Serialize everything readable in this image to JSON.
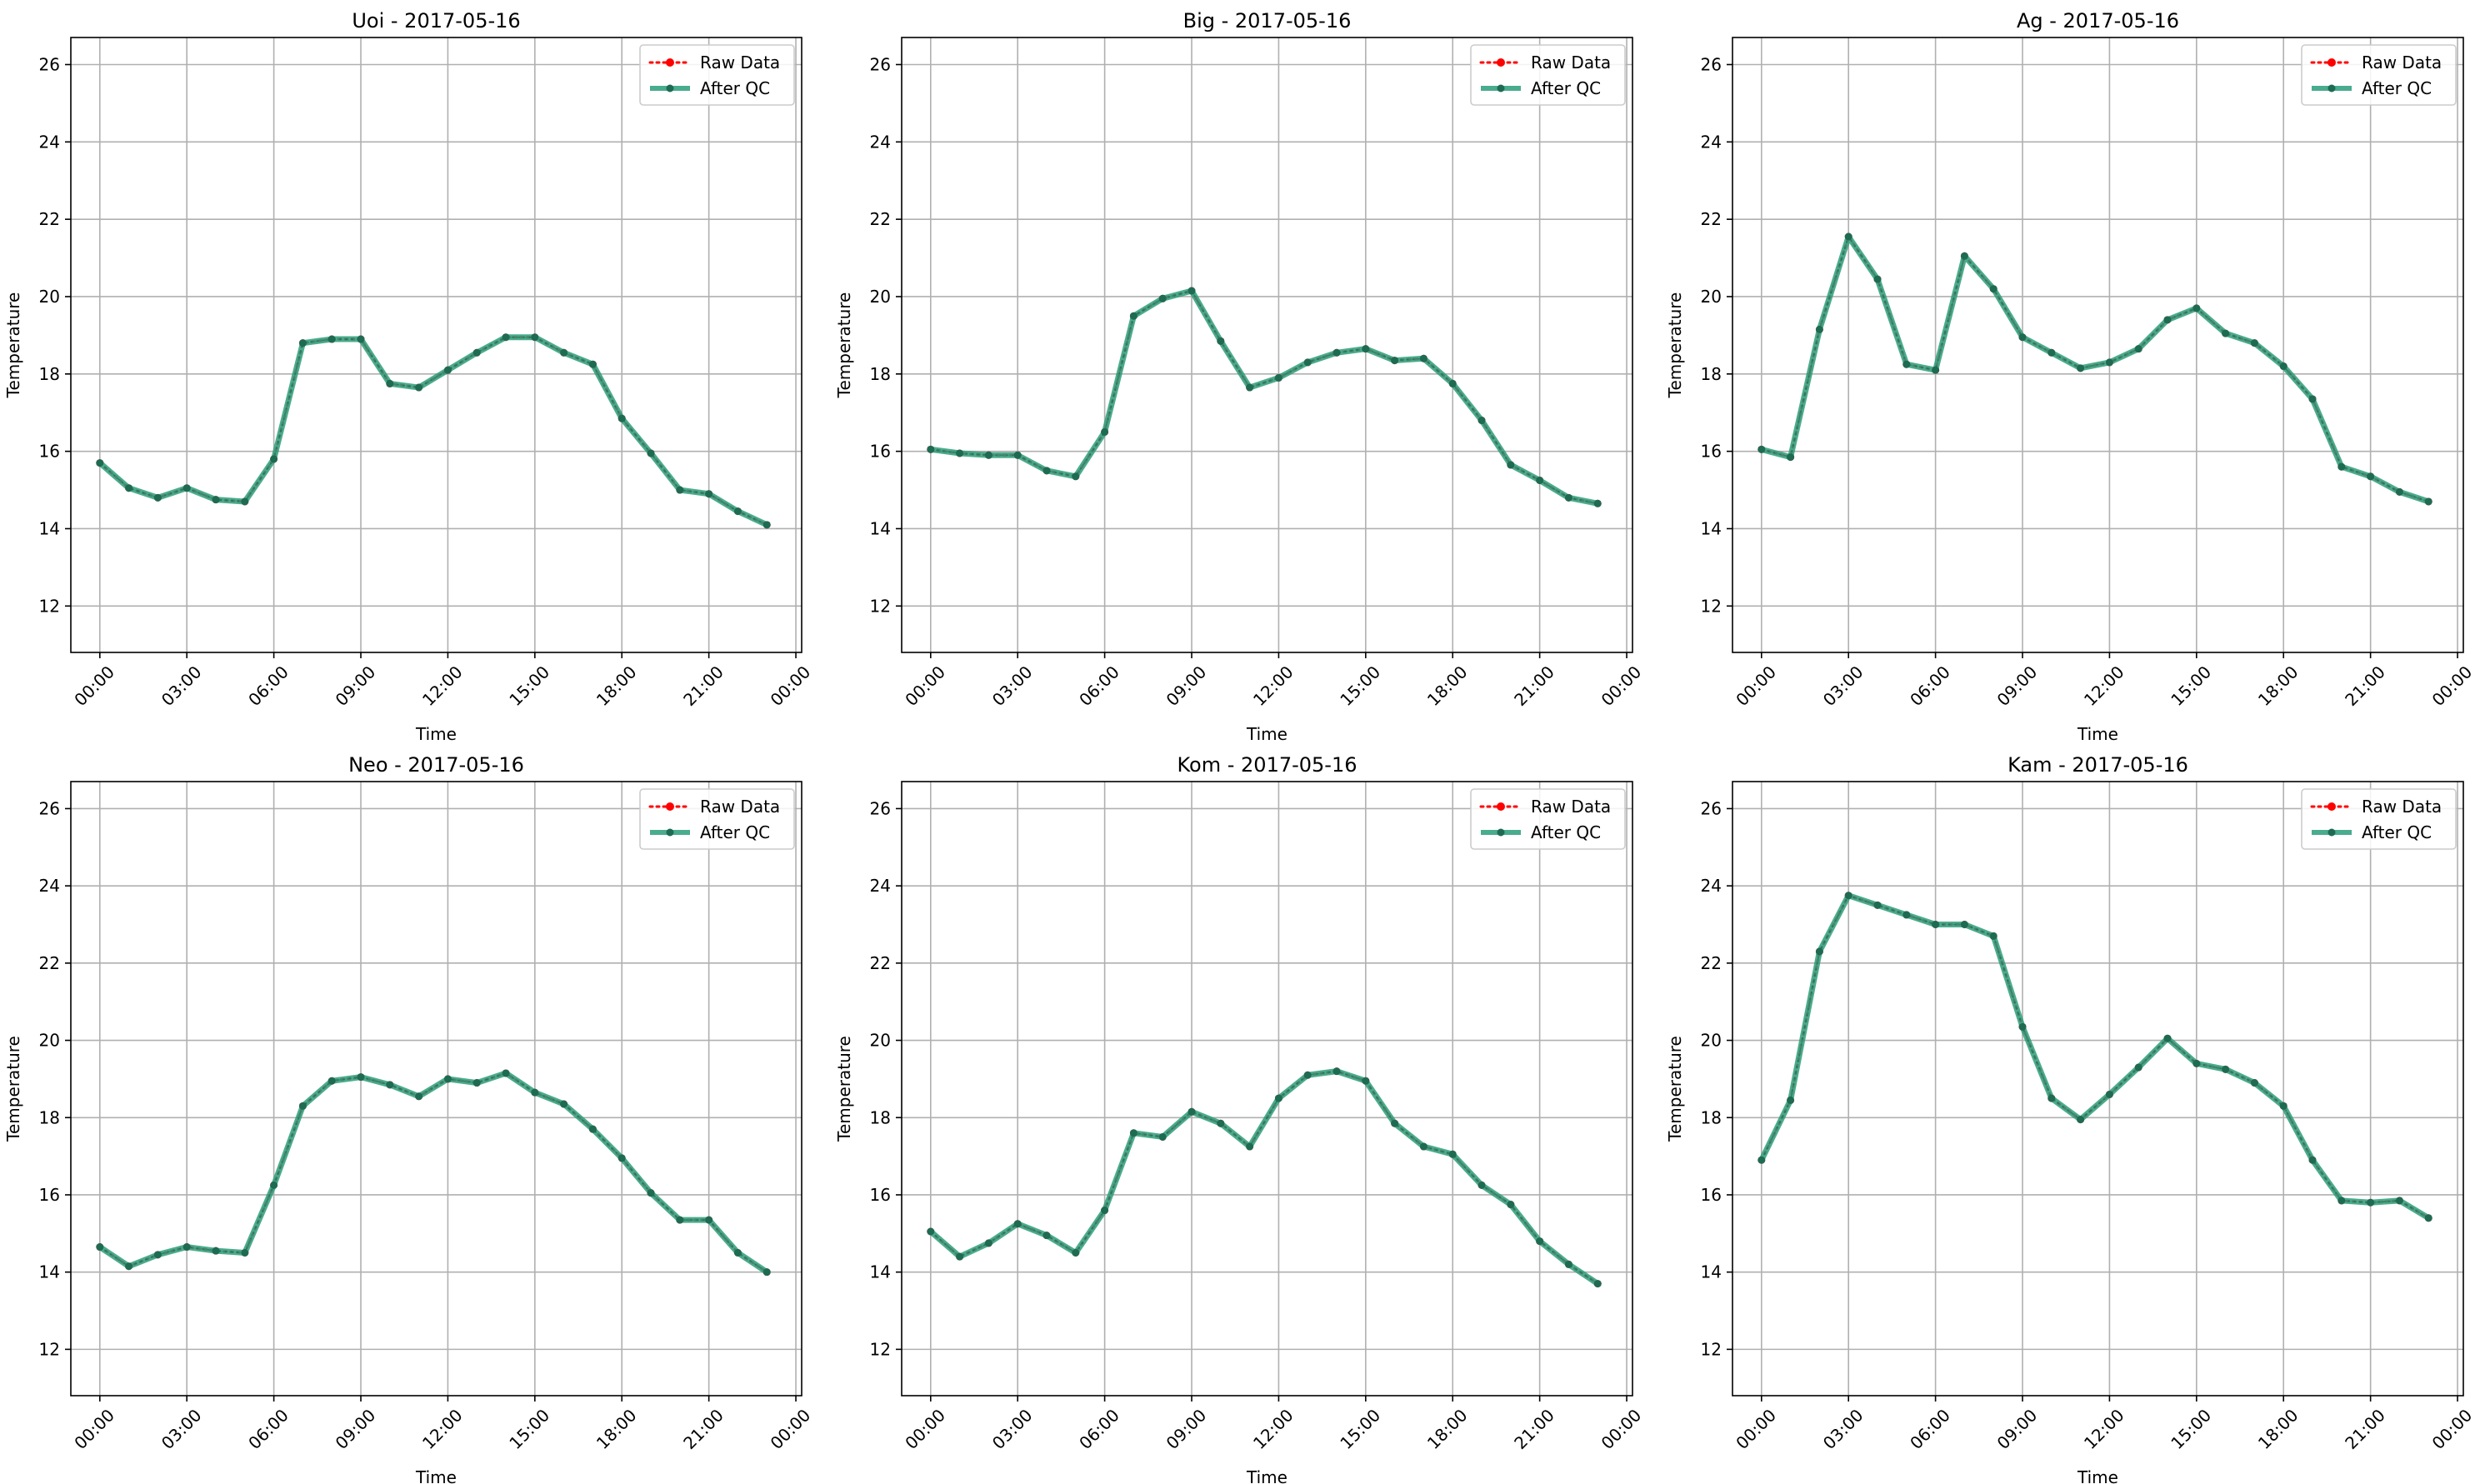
{
  "figure": {
    "background": "#ffffff",
    "colors": {
      "raw": "#ff0000",
      "after_qc": "#2a9d7a",
      "marker": "#1e6b53",
      "grid": "#b0b0b0"
    }
  },
  "chart_data": [
    {
      "type": "line",
      "title": "Uoi - 2017-05-16",
      "xlabel": "Time",
      "ylabel": "Temperature",
      "x_ticks": [
        "00:00",
        "03:00",
        "06:00",
        "09:00",
        "12:00",
        "15:00",
        "18:00",
        "21:00",
        "00:00"
      ],
      "y_ticks": [
        "12",
        "14",
        "16",
        "18",
        "20",
        "22",
        "24",
        "26"
      ],
      "xlim": [
        "2017-05-15 23:00",
        "2017-05-17 00:12"
      ],
      "ylim": [
        10.8,
        26.7
      ],
      "grid": true,
      "legend": "top-right",
      "x": [
        "00:00",
        "01:00",
        "02:00",
        "03:00",
        "04:00",
        "05:00",
        "06:00",
        "07:00",
        "08:00",
        "09:00",
        "10:00",
        "11:00",
        "12:00",
        "13:00",
        "14:00",
        "15:00",
        "16:00",
        "17:00",
        "18:00",
        "19:00",
        "20:00",
        "21:00",
        "22:00",
        "23:00"
      ],
      "series": [
        {
          "name": "Raw Data",
          "values": [
            15.7,
            15.05,
            14.8,
            15.05,
            14.75,
            14.7,
            15.8,
            18.8,
            18.9,
            18.9,
            17.75,
            17.65,
            18.1,
            18.55,
            18.95,
            18.95,
            18.55,
            18.25,
            16.85,
            15.95,
            15.0,
            14.9,
            14.45,
            14.1
          ]
        },
        {
          "name": "After QC",
          "values": [
            15.7,
            15.05,
            14.8,
            15.05,
            14.75,
            14.7,
            15.8,
            18.8,
            18.9,
            18.9,
            17.75,
            17.65,
            18.1,
            18.55,
            18.95,
            18.95,
            18.55,
            18.25,
            16.85,
            15.95,
            15.0,
            14.9,
            14.45,
            14.1
          ]
        }
      ]
    },
    {
      "type": "line",
      "title": "Big - 2017-05-16",
      "xlabel": "Time",
      "ylabel": "Temperature",
      "x_ticks": [
        "00:00",
        "03:00",
        "06:00",
        "09:00",
        "12:00",
        "15:00",
        "18:00",
        "21:00",
        "00:00"
      ],
      "y_ticks": [
        "12",
        "14",
        "16",
        "18",
        "20",
        "22",
        "24",
        "26"
      ],
      "xlim": [
        "2017-05-15 23:00",
        "2017-05-17 00:12"
      ],
      "ylim": [
        10.8,
        26.7
      ],
      "grid": true,
      "legend": "top-right",
      "x": [
        "00:00",
        "01:00",
        "02:00",
        "03:00",
        "04:00",
        "05:00",
        "06:00",
        "07:00",
        "08:00",
        "09:00",
        "10:00",
        "11:00",
        "12:00",
        "13:00",
        "14:00",
        "15:00",
        "16:00",
        "17:00",
        "18:00",
        "19:00",
        "20:00",
        "21:00",
        "22:00",
        "23:00"
      ],
      "series": [
        {
          "name": "Raw Data",
          "values": [
            16.05,
            15.95,
            15.9,
            15.9,
            15.5,
            15.35,
            16.5,
            19.5,
            19.95,
            20.15,
            18.85,
            17.65,
            17.9,
            18.3,
            18.55,
            18.65,
            18.35,
            18.4,
            17.75,
            16.8,
            15.65,
            15.25,
            14.8,
            14.65
          ]
        },
        {
          "name": "After QC",
          "values": [
            16.05,
            15.95,
            15.9,
            15.9,
            15.5,
            15.35,
            16.5,
            19.5,
            19.95,
            20.15,
            18.85,
            17.65,
            17.9,
            18.3,
            18.55,
            18.65,
            18.35,
            18.4,
            17.75,
            16.8,
            15.65,
            15.25,
            14.8,
            14.65
          ]
        }
      ]
    },
    {
      "type": "line",
      "title": "Ag - 2017-05-16",
      "xlabel": "Time",
      "ylabel": "Temperature",
      "x_ticks": [
        "00:00",
        "03:00",
        "06:00",
        "09:00",
        "12:00",
        "15:00",
        "18:00",
        "21:00",
        "00:00"
      ],
      "y_ticks": [
        "12",
        "14",
        "16",
        "18",
        "20",
        "22",
        "24",
        "26"
      ],
      "xlim": [
        "2017-05-15 23:00",
        "2017-05-17 00:12"
      ],
      "ylim": [
        10.8,
        26.7
      ],
      "grid": true,
      "legend": "top-right",
      "x": [
        "00:00",
        "01:00",
        "02:00",
        "03:00",
        "04:00",
        "05:00",
        "06:00",
        "07:00",
        "08:00",
        "09:00",
        "10:00",
        "11:00",
        "12:00",
        "13:00",
        "14:00",
        "15:00",
        "16:00",
        "17:00",
        "18:00",
        "19:00",
        "20:00",
        "21:00",
        "22:00",
        "23:00"
      ],
      "series": [
        {
          "name": "Raw Data",
          "values": [
            16.05,
            15.85,
            19.15,
            21.55,
            20.45,
            18.25,
            18.1,
            21.05,
            20.2,
            18.95,
            18.55,
            18.15,
            18.3,
            18.65,
            19.4,
            19.7,
            19.05,
            18.8,
            18.2,
            17.35,
            15.6,
            15.35,
            14.95,
            14.7
          ]
        },
        {
          "name": "After QC",
          "values": [
            16.05,
            15.85,
            19.15,
            21.55,
            20.45,
            18.25,
            18.1,
            21.05,
            20.2,
            18.95,
            18.55,
            18.15,
            18.3,
            18.65,
            19.4,
            19.7,
            19.05,
            18.8,
            18.2,
            17.35,
            15.6,
            15.35,
            14.95,
            14.7
          ]
        }
      ]
    },
    {
      "type": "line",
      "title": "Neo - 2017-05-16",
      "xlabel": "Time",
      "ylabel": "Temperature",
      "x_ticks": [
        "00:00",
        "03:00",
        "06:00",
        "09:00",
        "12:00",
        "15:00",
        "18:00",
        "21:00",
        "00:00"
      ],
      "y_ticks": [
        "12",
        "14",
        "16",
        "18",
        "20",
        "22",
        "24",
        "26"
      ],
      "xlim": [
        "2017-05-15 23:00",
        "2017-05-17 00:12"
      ],
      "ylim": [
        10.8,
        26.7
      ],
      "grid": true,
      "legend": "top-right",
      "x": [
        "00:00",
        "01:00",
        "02:00",
        "03:00",
        "04:00",
        "05:00",
        "06:00",
        "07:00",
        "08:00",
        "09:00",
        "10:00",
        "11:00",
        "12:00",
        "13:00",
        "14:00",
        "15:00",
        "16:00",
        "17:00",
        "18:00",
        "19:00",
        "20:00",
        "21:00",
        "22:00",
        "23:00"
      ],
      "series": [
        {
          "name": "Raw Data",
          "values": [
            14.65,
            14.15,
            14.45,
            14.65,
            14.55,
            14.5,
            16.25,
            18.3,
            18.95,
            19.05,
            18.85,
            18.55,
            19.0,
            18.9,
            19.15,
            18.65,
            18.35,
            17.7,
            16.95,
            16.05,
            15.35,
            15.35,
            14.5,
            14.0
          ]
        },
        {
          "name": "After QC",
          "values": [
            14.65,
            14.15,
            14.45,
            14.65,
            14.55,
            14.5,
            16.25,
            18.3,
            18.95,
            19.05,
            18.85,
            18.55,
            19.0,
            18.9,
            19.15,
            18.65,
            18.35,
            17.7,
            16.95,
            16.05,
            15.35,
            15.35,
            14.5,
            14.0
          ]
        }
      ]
    },
    {
      "type": "line",
      "title": "Kom - 2017-05-16",
      "xlabel": "Time",
      "ylabel": "Temperature",
      "x_ticks": [
        "00:00",
        "03:00",
        "06:00",
        "09:00",
        "12:00",
        "15:00",
        "18:00",
        "21:00",
        "00:00"
      ],
      "y_ticks": [
        "12",
        "14",
        "16",
        "18",
        "20",
        "22",
        "24",
        "26"
      ],
      "xlim": [
        "2017-05-15 23:00",
        "2017-05-17 00:12"
      ],
      "ylim": [
        10.8,
        26.7
      ],
      "grid": true,
      "legend": "top-right",
      "x": [
        "00:00",
        "01:00",
        "02:00",
        "03:00",
        "04:00",
        "05:00",
        "06:00",
        "07:00",
        "08:00",
        "09:00",
        "10:00",
        "11:00",
        "12:00",
        "13:00",
        "14:00",
        "15:00",
        "16:00",
        "17:00",
        "18:00",
        "19:00",
        "20:00",
        "21:00",
        "22:00",
        "23:00"
      ],
      "series": [
        {
          "name": "Raw Data",
          "values": [
            15.05,
            14.4,
            14.75,
            15.25,
            14.95,
            14.5,
            15.6,
            17.6,
            17.5,
            18.15,
            17.85,
            17.25,
            18.5,
            19.1,
            19.2,
            18.95,
            17.85,
            17.25,
            17.05,
            16.25,
            15.75,
            14.8,
            14.2,
            13.7
          ]
        },
        {
          "name": "After QC",
          "values": [
            15.05,
            14.4,
            14.75,
            15.25,
            14.95,
            14.5,
            15.6,
            17.6,
            17.5,
            18.15,
            17.85,
            17.25,
            18.5,
            19.1,
            19.2,
            18.95,
            17.85,
            17.25,
            17.05,
            16.25,
            15.75,
            14.8,
            14.2,
            13.7
          ]
        }
      ]
    },
    {
      "type": "line",
      "title": "Kam - 2017-05-16",
      "xlabel": "Time",
      "ylabel": "Temperature",
      "x_ticks": [
        "00:00",
        "03:00",
        "06:00",
        "09:00",
        "12:00",
        "15:00",
        "18:00",
        "21:00",
        "00:00"
      ],
      "y_ticks": [
        "12",
        "14",
        "16",
        "18",
        "20",
        "22",
        "24",
        "26"
      ],
      "xlim": [
        "2017-05-15 23:00",
        "2017-05-17 00:12"
      ],
      "ylim": [
        10.8,
        26.7
      ],
      "grid": true,
      "legend": "top-right",
      "x": [
        "00:00",
        "01:00",
        "02:00",
        "03:00",
        "04:00",
        "05:00",
        "06:00",
        "07:00",
        "08:00",
        "09:00",
        "10:00",
        "11:00",
        "12:00",
        "13:00",
        "14:00",
        "15:00",
        "16:00",
        "17:00",
        "18:00",
        "19:00",
        "20:00",
        "21:00",
        "22:00",
        "23:00"
      ],
      "series": [
        {
          "name": "Raw Data",
          "values": [
            16.9,
            18.45,
            22.3,
            23.75,
            23.5,
            23.25,
            23.0,
            23.0,
            22.7,
            20.35,
            18.5,
            17.95,
            18.6,
            19.3,
            20.05,
            19.4,
            19.25,
            18.9,
            18.3,
            16.9,
            15.85,
            15.8,
            15.85,
            15.4
          ]
        },
        {
          "name": "After QC",
          "values": [
            16.9,
            18.45,
            22.3,
            23.75,
            23.5,
            23.25,
            23.0,
            23.0,
            22.7,
            20.35,
            18.5,
            17.95,
            18.6,
            19.3,
            20.05,
            19.4,
            19.25,
            18.9,
            18.3,
            16.9,
            15.85,
            15.8,
            15.85,
            15.4
          ]
        }
      ]
    }
  ]
}
